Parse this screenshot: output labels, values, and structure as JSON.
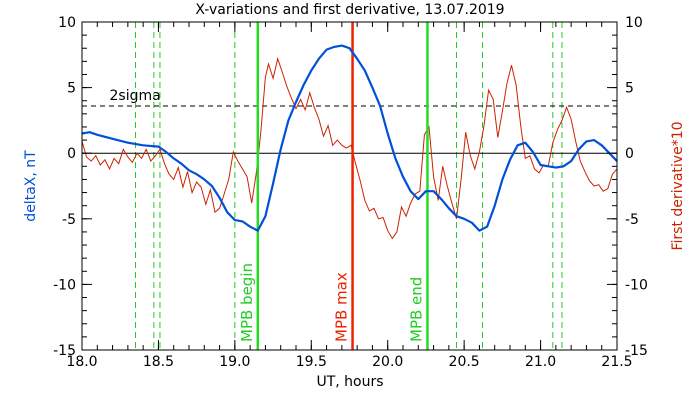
{
  "chart_data": {
    "type": "line",
    "title": "X-variations and first derivative, 13.07.2019",
    "xlabel": "UT, hours",
    "ylabel_left": "deltaX, nT",
    "ylabel_right": "First derivative*10",
    "xlim": [
      18.0,
      21.5
    ],
    "ylim": [
      -15,
      10
    ],
    "y2lim": [
      -15,
      10
    ],
    "x_ticks": [
      "18.0",
      "18.5",
      "19.0",
      "19.5",
      "20.0",
      "20.5",
      "21.0",
      "21.5"
    ],
    "y_ticks_left": [
      "10",
      "5",
      "0",
      "-5",
      "-10",
      "-15"
    ],
    "y_ticks_right": [
      "10",
      "5",
      "0",
      "-5",
      "-10",
      "-15"
    ],
    "sigma_label": "2sigma",
    "sigma_level": 3.6,
    "zero_level": 0,
    "colors": {
      "deltaX": "#0050d8",
      "derivative": "#cc2200",
      "mpb_lines": "#22dd22",
      "mpb_label": "#22cc22",
      "max_line": "#ee2200",
      "dashed_green": "#22cc22",
      "axes": "#000000"
    },
    "vertical_markers": [
      {
        "x": 19.15,
        "label": "MPB begin",
        "kind": "mpb"
      },
      {
        "x": 19.77,
        "label": "MPB max",
        "kind": "max"
      },
      {
        "x": 20.26,
        "label": "MPB end",
        "kind": "mpb"
      }
    ],
    "dashed_lines_x": [
      18.35,
      18.47,
      18.51,
      19.0,
      20.45,
      20.62,
      21.08,
      21.14
    ],
    "series": [
      {
        "name": "deltaX, nT",
        "axis": "left",
        "x": [
          18.0,
          18.05,
          18.1,
          18.2,
          18.3,
          18.4,
          18.5,
          18.55,
          18.6,
          18.65,
          18.7,
          18.75,
          18.8,
          18.85,
          18.9,
          18.95,
          19.0,
          19.05,
          19.1,
          19.15,
          19.2,
          19.25,
          19.3,
          19.35,
          19.4,
          19.45,
          19.5,
          19.55,
          19.6,
          19.65,
          19.7,
          19.75,
          19.8,
          19.85,
          19.9,
          19.95,
          20.0,
          20.05,
          20.1,
          20.15,
          20.2,
          20.25,
          20.3,
          20.35,
          20.4,
          20.45,
          20.5,
          20.55,
          20.6,
          20.65,
          20.7,
          20.75,
          20.8,
          20.85,
          20.9,
          20.95,
          21.0,
          21.05,
          21.1,
          21.15,
          21.2,
          21.25,
          21.3,
          21.35,
          21.4,
          21.45,
          21.5
        ],
        "y": [
          1.5,
          1.6,
          1.4,
          1.1,
          0.8,
          0.6,
          0.5,
          0.1,
          -0.4,
          -0.8,
          -1.3,
          -1.6,
          -2.0,
          -2.5,
          -3.4,
          -4.5,
          -5.1,
          -5.2,
          -5.6,
          -5.9,
          -4.8,
          -2.3,
          0.3,
          2.5,
          3.9,
          5.2,
          6.3,
          7.2,
          7.9,
          8.1,
          8.2,
          8.0,
          7.2,
          6.3,
          5.0,
          3.6,
          1.5,
          -0.4,
          -1.8,
          -2.9,
          -3.5,
          -2.9,
          -2.9,
          -3.5,
          -4.2,
          -4.8,
          -5.0,
          -5.3,
          -5.9,
          -5.6,
          -4.0,
          -2.0,
          -0.5,
          0.6,
          0.8,
          0.1,
          -0.9,
          -1.0,
          -1.1,
          -1.0,
          -0.6,
          0.3,
          0.9,
          1.0,
          0.6,
          0.0,
          -0.6
        ]
      },
      {
        "name": "First derivative*10",
        "axis": "right",
        "x": [
          18.0,
          18.03,
          18.06,
          18.09,
          18.12,
          18.15,
          18.18,
          18.21,
          18.24,
          18.27,
          18.3,
          18.33,
          18.36,
          18.39,
          18.42,
          18.45,
          18.48,
          18.51,
          18.54,
          18.57,
          18.6,
          18.63,
          18.66,
          18.69,
          18.72,
          18.75,
          18.78,
          18.81,
          18.84,
          18.87,
          18.9,
          18.93,
          18.96,
          18.99,
          19.02,
          19.05,
          19.08,
          19.11,
          19.14,
          19.17,
          19.2,
          19.22,
          19.25,
          19.28,
          19.31,
          19.34,
          19.37,
          19.4,
          19.43,
          19.46,
          19.49,
          19.52,
          19.55,
          19.58,
          19.61,
          19.64,
          19.67,
          19.7,
          19.73,
          19.76,
          19.79,
          19.82,
          19.85,
          19.88,
          19.91,
          19.94,
          19.97,
          20.0,
          20.03,
          20.06,
          20.09,
          20.12,
          20.15,
          20.18,
          20.21,
          20.24,
          20.27,
          20.3,
          20.33,
          20.36,
          20.39,
          20.42,
          20.45,
          20.48,
          20.51,
          20.54,
          20.57,
          20.6,
          20.63,
          20.66,
          20.69,
          20.72,
          20.75,
          20.78,
          20.81,
          20.84,
          20.87,
          20.9,
          20.93,
          20.96,
          20.99,
          21.02,
          21.05,
          21.08,
          21.11,
          21.14,
          21.17,
          21.2,
          21.23,
          21.26,
          21.29,
          21.32,
          21.35,
          21.38,
          21.41,
          21.44,
          21.47,
          21.5
        ],
        "y": [
          0.9,
          -0.3,
          -0.6,
          -0.2,
          -0.9,
          -0.5,
          -1.2,
          -0.4,
          -0.8,
          0.3,
          -0.3,
          -0.7,
          0.0,
          -0.4,
          0.3,
          -0.6,
          -0.2,
          0.3,
          -0.8,
          -1.6,
          -2.0,
          -1.1,
          -2.6,
          -1.4,
          -3.0,
          -2.2,
          -2.6,
          -3.9,
          -2.8,
          -4.5,
          -4.2,
          -3.1,
          -2.0,
          0.1,
          -0.6,
          -1.2,
          -1.8,
          -3.8,
          -1.5,
          1.6,
          5.8,
          6.8,
          5.7,
          7.2,
          6.2,
          5.1,
          4.2,
          3.4,
          4.1,
          3.3,
          4.6,
          3.5,
          2.6,
          1.3,
          2.1,
          0.6,
          1.0,
          0.6,
          0.4,
          0.6,
          -0.8,
          -2.1,
          -3.6,
          -4.4,
          -4.2,
          -5.0,
          -4.9,
          -5.9,
          -6.5,
          -6.0,
          -4.1,
          -4.8,
          -3.8,
          -3.1,
          -2.9,
          1.4,
          2.0,
          -1.8,
          -3.6,
          -1.0,
          -2.5,
          -3.8,
          -5.0,
          -2.0,
          1.6,
          -0.2,
          -1.2,
          0.1,
          2.1,
          4.8,
          4.1,
          1.2,
          3.2,
          5.3,
          6.7,
          5.2,
          2.1,
          -0.4,
          -0.2,
          -1.2,
          -1.5,
          -0.9,
          -1.0,
          0.8,
          1.8,
          2.5,
          3.5,
          2.6,
          0.9,
          -0.6,
          -1.4,
          -2.1,
          -2.5,
          -2.4,
          -2.9,
          -2.7,
          -1.6,
          -1.2
        ]
      }
    ]
  }
}
